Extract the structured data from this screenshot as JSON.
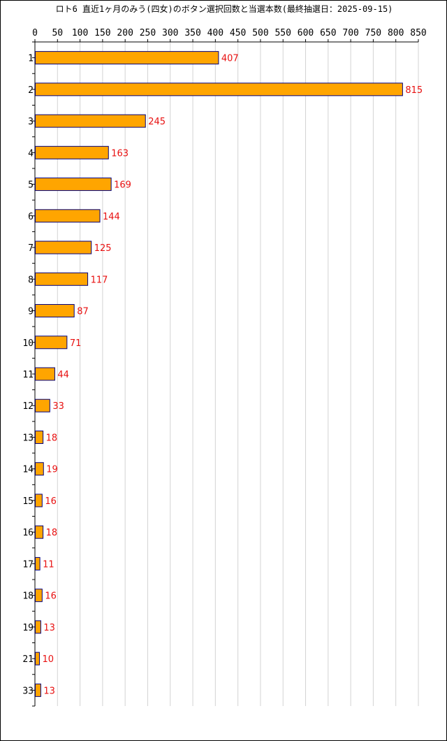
{
  "chart_data": {
    "type": "bar",
    "orientation": "horizontal",
    "title": "ロト6 直近1ヶ月のみう(四女)のボタン選択回数と当選本数(最終抽選日：2025-09-15)",
    "categories": [
      "1",
      "2",
      "3",
      "4",
      "5",
      "6",
      "7",
      "8",
      "9",
      "10",
      "11",
      "12",
      "13",
      "14",
      "15",
      "16",
      "17",
      "18",
      "19",
      "21",
      "33"
    ],
    "values": [
      407,
      815,
      245,
      163,
      169,
      144,
      125,
      117,
      87,
      71,
      44,
      33,
      18,
      19,
      16,
      18,
      11,
      16,
      13,
      10,
      13
    ],
    "xlim": [
      0,
      850
    ],
    "xticks": [
      "0",
      "50",
      "100",
      "150",
      "200",
      "250",
      "300",
      "350",
      "400",
      "450",
      "500",
      "550",
      "600",
      "650",
      "700",
      "750",
      "800",
      "850"
    ],
    "grid": true,
    "xaxis_position": "top",
    "data_labels": true,
    "colors": {
      "bar_fill": "#ffa500",
      "bar_stroke": "#000080",
      "value_label": "#e81010",
      "grid": "#d3d3d3"
    }
  }
}
